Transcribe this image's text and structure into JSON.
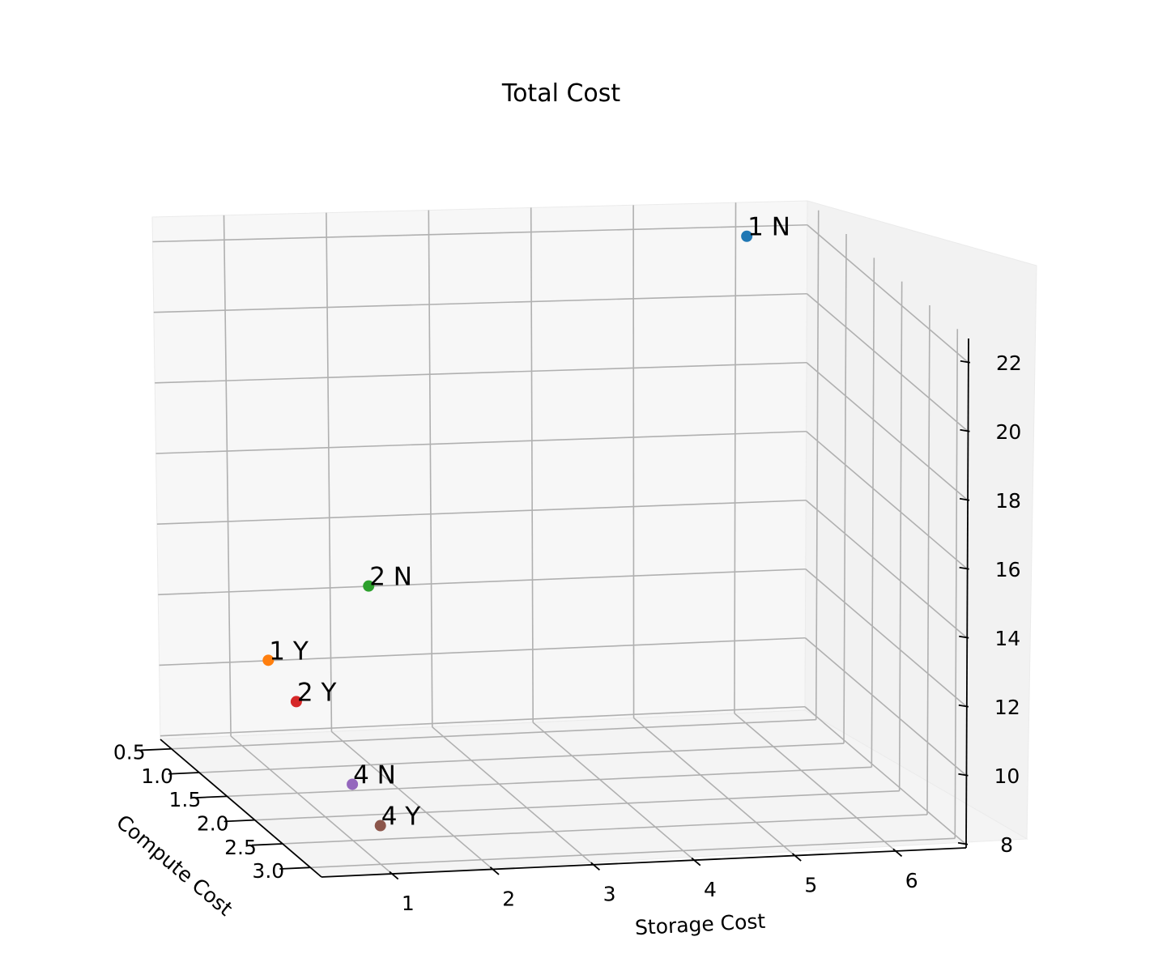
{
  "chart_data": {
    "type": "scatter",
    "projection": "3d",
    "title": "Total Cost",
    "xlabel": "Compute Cost",
    "ylabel": "Storage Cost",
    "zlabel": "",
    "x_ticks": [
      "0.5",
      "1.0",
      "1.5",
      "2.0",
      "2.5",
      "3.0"
    ],
    "y_ticks": [
      "1",
      "2",
      "3",
      "4",
      "5",
      "6"
    ],
    "z_ticks": [
      "8",
      "10",
      "12",
      "14",
      "16",
      "18",
      "20",
      "22"
    ],
    "xlim": [
      0.3,
      3.2
    ],
    "ylim": [
      0.3,
      6.7
    ],
    "zlim": [
      7.9,
      22.7
    ],
    "grid": true,
    "points": [
      {
        "label": "1 N",
        "x": 0.5,
        "y": 6.0,
        "z": 22.0,
        "color": "#1f77b4"
      },
      {
        "label": "1 Y",
        "x": 1.0,
        "y": 1.0,
        "z": 11.0,
        "color": "#ff7f0e"
      },
      {
        "label": "2 N",
        "x": 1.0,
        "y": 2.0,
        "z": 13.0,
        "color": "#2ca02c"
      },
      {
        "label": "2 Y",
        "x": 1.5,
        "y": 1.0,
        "z": 10.5,
        "color": "#d62728"
      },
      {
        "label": "4 N",
        "x": 2.5,
        "y": 1.0,
        "z": 9.5,
        "color": "#9467bd"
      },
      {
        "label": "4 Y",
        "x": 3.0,
        "y": 1.0,
        "z": 9.0,
        "color": "#8c564b"
      }
    ]
  }
}
